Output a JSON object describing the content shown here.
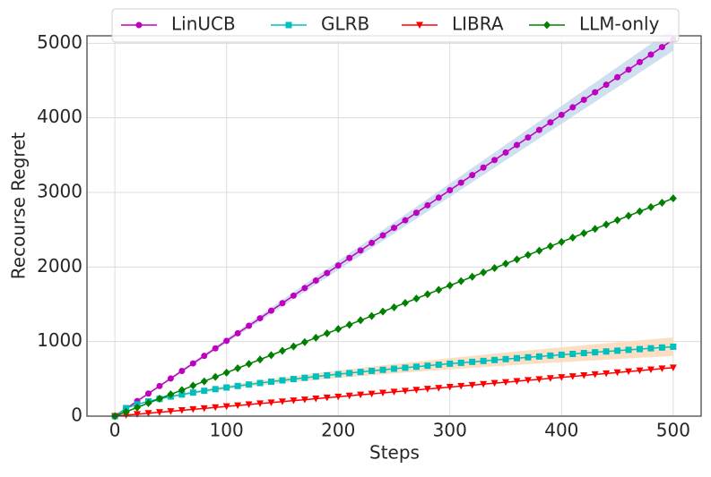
{
  "chart_data": {
    "type": "line",
    "xlabel": "Steps",
    "ylabel": "Recourse Regret",
    "xlim": [
      -25,
      525
    ],
    "xticks": [
      0,
      100,
      200,
      300,
      400,
      500
    ],
    "ylim": [
      0,
      5100
    ],
    "yticks": [
      0,
      1000,
      2000,
      3000,
      4000,
      5000
    ],
    "grid": true,
    "legend": "top",
    "x": [
      0,
      10,
      20,
      30,
      40,
      50,
      60,
      70,
      80,
      90,
      100,
      110,
      120,
      130,
      140,
      150,
      160,
      170,
      180,
      190,
      200,
      210,
      220,
      230,
      240,
      250,
      260,
      270,
      280,
      290,
      300,
      310,
      320,
      330,
      340,
      350,
      360,
      370,
      380,
      390,
      400,
      410,
      420,
      430,
      440,
      450,
      460,
      470,
      480,
      490,
      500
    ],
    "series": [
      {
        "name": "LinUCB",
        "color": "#bf00bf",
        "marker": "circle",
        "band_color": "#c6d9ec",
        "values": [
          0,
          101,
          202,
          303,
          404,
          505,
          606,
          707,
          808,
          909,
          1010,
          1111,
          1212,
          1313,
          1414,
          1515,
          1616,
          1717,
          1818,
          1919,
          2020,
          2121,
          2222,
          2323,
          2424,
          2525,
          2626,
          2727,
          2828,
          2929,
          3030,
          3131,
          3232,
          3333,
          3434,
          3535,
          3636,
          3737,
          3838,
          3939,
          4040,
          4141,
          4242,
          4343,
          4444,
          4545,
          4646,
          4747,
          4848,
          4949,
          5050
        ],
        "error": [
          0,
          3,
          6,
          9,
          12,
          15,
          18,
          21,
          24,
          27,
          30,
          33,
          36,
          39,
          42,
          45,
          48,
          51,
          54,
          57,
          60,
          63,
          66,
          69,
          72,
          75,
          78,
          81,
          84,
          87,
          90,
          93,
          96,
          99,
          102,
          105,
          108,
          111,
          114,
          117,
          120,
          123,
          126,
          129,
          132,
          135,
          138,
          141,
          144,
          147,
          150
        ]
      },
      {
        "name": "GLRB",
        "color": "#00bfbf",
        "marker": "square",
        "band_color": "#fbd9b8",
        "values": [
          0,
          108,
          158,
          198,
          232,
          262,
          290,
          316,
          340,
          362,
          384,
          405,
          424,
          444,
          462,
          480,
          497,
          514,
          531,
          547,
          562,
          577,
          592,
          607,
          621,
          636,
          649,
          663,
          676,
          690,
          703,
          715,
          728,
          740,
          753,
          765,
          777,
          789,
          800,
          812,
          823,
          834,
          846,
          856,
          867,
          878,
          889,
          899,
          910,
          920,
          931
        ],
        "error": [
          0,
          3,
          5,
          8,
          10,
          13,
          15,
          18,
          20,
          23,
          25,
          28,
          30,
          33,
          35,
          38,
          40,
          43,
          45,
          48,
          50,
          53,
          55,
          58,
          60,
          63,
          65,
          68,
          70,
          73,
          75,
          78,
          80,
          83,
          85,
          88,
          90,
          93,
          95,
          98,
          100,
          103,
          105,
          108,
          110,
          113,
          115,
          118,
          120,
          123,
          125
        ]
      },
      {
        "name": "LIBRA",
        "color": "#ff0000",
        "marker": "triangle-down",
        "values": [
          0,
          13,
          26,
          39,
          52,
          65,
          78,
          91,
          104,
          117,
          130,
          143,
          156,
          169,
          182,
          195,
          208,
          221,
          234,
          247,
          260,
          273,
          286,
          299,
          312,
          325,
          338,
          351,
          364,
          377,
          390,
          403,
          416,
          429,
          442,
          455,
          468,
          481,
          494,
          507,
          520,
          533,
          546,
          559,
          572,
          585,
          598,
          611,
          624,
          637,
          650
        ]
      },
      {
        "name": "LLM-only",
        "color": "#008000",
        "marker": "diamond",
        "values": [
          0,
          58,
          117,
          175,
          234,
          292,
          350,
          409,
          467,
          526,
          584,
          642,
          701,
          759,
          818,
          876,
          934,
          993,
          1051,
          1110,
          1168,
          1226,
          1285,
          1343,
          1402,
          1460,
          1518,
          1577,
          1635,
          1694,
          1752,
          1810,
          1869,
          1927,
          1986,
          2044,
          2102,
          2161,
          2219,
          2278,
          2336,
          2394,
          2453,
          2511,
          2570,
          2628,
          2686,
          2745,
          2803,
          2862,
          2920
        ]
      }
    ]
  }
}
